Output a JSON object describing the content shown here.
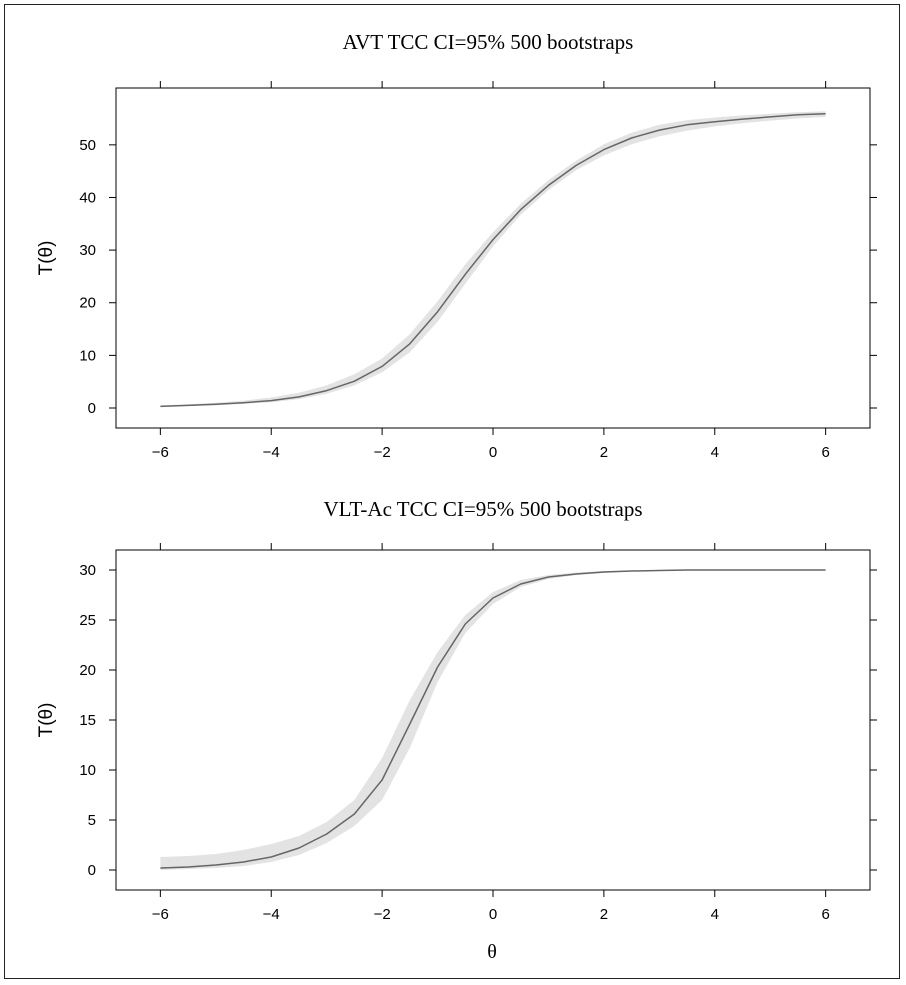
{
  "chart_data": [
    {
      "type": "line",
      "title": "AVT TCC CI=95% 500 bootstraps",
      "xlabel": "",
      "ylabel": "T(θ)",
      "xlim": [
        -6.8,
        6.8
      ],
      "ylim": [
        -3.8,
        60.8
      ],
      "xticks": [
        -6,
        -4,
        -2,
        0,
        2,
        4,
        6
      ],
      "xtick_labels": [
        "−6",
        "−4",
        "−2",
        "0",
        "2",
        "4",
        "6"
      ],
      "yticks": [
        0,
        10,
        20,
        30,
        40,
        50
      ],
      "ytick_labels": [
        "0",
        "10",
        "20",
        "30",
        "40",
        "50"
      ],
      "grid": false,
      "series": [
        {
          "x": [
            -6,
            -5.5,
            -5,
            -4.5,
            -4,
            -3.5,
            -3,
            -2.5,
            -2,
            -1.5,
            -1,
            -0.5,
            0,
            0.5,
            1,
            1.5,
            2,
            2.5,
            3,
            3.5,
            4,
            4.5,
            5,
            5.5,
            6
          ],
          "y": [
            0.3,
            0.5,
            0.7,
            1.0,
            1.4,
            2.1,
            3.3,
            5.1,
            7.9,
            12.2,
            18.3,
            25.4,
            32.0,
            37.7,
            42.3,
            46.1,
            49.1,
            51.3,
            52.8,
            53.8,
            54.4,
            54.9,
            55.3,
            55.7,
            55.9
          ],
          "lower": [
            0.2,
            0.4,
            0.5,
            0.8,
            1.1,
            1.7,
            2.7,
            4.3,
            6.8,
            10.6,
            16.4,
            23.6,
            30.7,
            36.7,
            41.4,
            45.2,
            48.0,
            50.1,
            51.6,
            52.7,
            53.5,
            54.1,
            54.6,
            55.0,
            55.3
          ],
          "upper": [
            0.5,
            0.7,
            1.0,
            1.4,
            2.0,
            2.9,
            4.3,
            6.4,
            9.4,
            14.0,
            20.3,
            27.3,
            33.4,
            38.8,
            43.3,
            47.0,
            50.1,
            52.3,
            53.8,
            54.7,
            55.2,
            55.6,
            55.9,
            56.2,
            56.4
          ]
        }
      ]
    },
    {
      "type": "line",
      "title": "VLT-Ac TCC CI=95% 500 bootstraps",
      "xlabel": "θ",
      "ylabel": "T(θ)",
      "xlim": [
        -6.8,
        6.8
      ],
      "ylim": [
        -2,
        32
      ],
      "xticks": [
        -6,
        -4,
        -2,
        0,
        2,
        4,
        6
      ],
      "xtick_labels": [
        "−6",
        "−4",
        "−2",
        "0",
        "2",
        "4",
        "6"
      ],
      "yticks": [
        0,
        5,
        10,
        15,
        20,
        25,
        30
      ],
      "ytick_labels": [
        "0",
        "5",
        "10",
        "15",
        "20",
        "25",
        "30"
      ],
      "grid": false,
      "series": [
        {
          "x": [
            -6,
            -5.5,
            -5,
            -4.5,
            -4,
            -3.5,
            -3,
            -2.5,
            -2,
            -1.5,
            -1,
            -0.5,
            0,
            0.5,
            1,
            1.5,
            2,
            2.5,
            3,
            3.5,
            4,
            4.5,
            5,
            5.5,
            6
          ],
          "y": [
            0.2,
            0.3,
            0.5,
            0.8,
            1.3,
            2.2,
            3.6,
            5.6,
            9.0,
            14.6,
            20.3,
            24.6,
            27.2,
            28.6,
            29.3,
            29.6,
            29.8,
            29.9,
            29.95,
            30.0,
            30.0,
            30.0,
            30.0,
            30.0,
            30.0
          ],
          "lower": [
            0.0,
            0.1,
            0.2,
            0.4,
            0.8,
            1.5,
            2.7,
            4.4,
            7.0,
            12.2,
            18.8,
            23.7,
            26.6,
            28.3,
            29.1,
            29.5,
            29.7,
            29.85,
            29.9,
            29.95,
            29.95,
            30.0,
            30.0,
            30.0,
            30.0
          ],
          "upper": [
            1.3,
            1.4,
            1.6,
            2.0,
            2.6,
            3.4,
            4.8,
            7.0,
            11.2,
            17.0,
            21.8,
            25.5,
            27.8,
            29.0,
            29.5,
            29.75,
            29.9,
            29.95,
            30.0,
            30.0,
            30.05,
            30.05,
            30.05,
            30.05,
            30.05
          ]
        }
      ]
    }
  ]
}
